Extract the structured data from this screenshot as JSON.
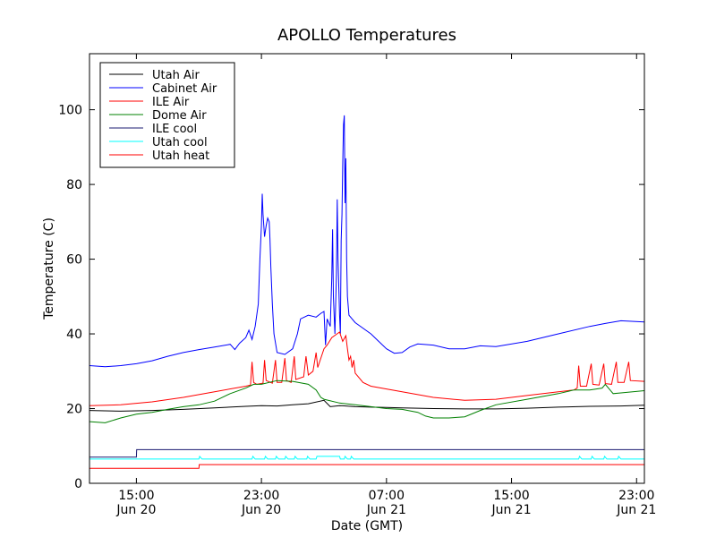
{
  "chart_data": {
    "type": "line",
    "title": "APOLLO Temperatures",
    "xlabel": "Date (GMT)",
    "ylabel": "Temperature (C)",
    "xlim": [
      12.0,
      47.5
    ],
    "ylim": [
      0,
      115
    ],
    "yticks": [
      0,
      20,
      40,
      60,
      80,
      100
    ],
    "xticks": [
      {
        "x": 15,
        "time": "15:00",
        "date": "Jun 20"
      },
      {
        "x": 23,
        "time": "23:00",
        "date": "Jun 20"
      },
      {
        "x": 31,
        "time": "07:00",
        "date": "Jun 21"
      },
      {
        "x": 39,
        "time": "15:00",
        "date": "Jun 21"
      },
      {
        "x": 47,
        "time": "23:00",
        "date": "Jun 21"
      }
    ],
    "legend_position": "top-left",
    "series": [
      {
        "name": "Utah Air",
        "color": "#000000",
        "points": [
          [
            12,
            19.5
          ],
          [
            14,
            19.3
          ],
          [
            16,
            19.5
          ],
          [
            18,
            19.8
          ],
          [
            20,
            20.2
          ],
          [
            22,
            20.6
          ],
          [
            23,
            20.8
          ],
          [
            24,
            20.7
          ],
          [
            25,
            21.0
          ],
          [
            26,
            21.3
          ],
          [
            27,
            22.2
          ],
          [
            27.4,
            20.5
          ],
          [
            28,
            20.8
          ],
          [
            29,
            20.5
          ],
          [
            30,
            20.4
          ],
          [
            31,
            20.3
          ],
          [
            32,
            20.2
          ],
          [
            34,
            20.0
          ],
          [
            36,
            19.9
          ],
          [
            38,
            19.9
          ],
          [
            40,
            20.1
          ],
          [
            42,
            20.4
          ],
          [
            44,
            20.6
          ],
          [
            46,
            20.7
          ],
          [
            47.5,
            20.9
          ]
        ]
      },
      {
        "name": "Cabinet Air",
        "color": "#0000ff",
        "points": [
          [
            12,
            31.5
          ],
          [
            13,
            31.2
          ],
          [
            14,
            31.5
          ],
          [
            15,
            32.0
          ],
          [
            16,
            32.8
          ],
          [
            17,
            34.0
          ],
          [
            18,
            35.0
          ],
          [
            19,
            35.8
          ],
          [
            20,
            36.5
          ],
          [
            21,
            37.2
          ],
          [
            21.3,
            35.8
          ],
          [
            21.6,
            37.5
          ],
          [
            22,
            39.0
          ],
          [
            22.2,
            41.0
          ],
          [
            22.4,
            38.5
          ],
          [
            22.6,
            42.0
          ],
          [
            22.8,
            48.0
          ],
          [
            22.9,
            60.0
          ],
          [
            23.0,
            69.0
          ],
          [
            23.05,
            77.5
          ],
          [
            23.1,
            72.0
          ],
          [
            23.2,
            66.0
          ],
          [
            23.3,
            69.0
          ],
          [
            23.4,
            71.0
          ],
          [
            23.5,
            70.0
          ],
          [
            23.55,
            65.0
          ],
          [
            23.6,
            58.0
          ],
          [
            23.7,
            48.0
          ],
          [
            23.8,
            40.0
          ],
          [
            24.0,
            35.0
          ],
          [
            24.5,
            34.5
          ],
          [
            25.0,
            36.0
          ],
          [
            25.3,
            40.0
          ],
          [
            25.5,
            44.0
          ],
          [
            26.0,
            45.0
          ],
          [
            26.5,
            44.5
          ],
          [
            26.8,
            45.5
          ],
          [
            27.0,
            46.0
          ],
          [
            27.1,
            37.0
          ],
          [
            27.2,
            44.0
          ],
          [
            27.4,
            42.0
          ],
          [
            27.5,
            55.0
          ],
          [
            27.55,
            68.0
          ],
          [
            27.6,
            50.0
          ],
          [
            27.7,
            40.0
          ],
          [
            27.8,
            56.0
          ],
          [
            27.85,
            76.0
          ],
          [
            27.9,
            60.0
          ],
          [
            28.0,
            45.0
          ],
          [
            28.05,
            40.0
          ],
          [
            28.1,
            65.0
          ],
          [
            28.15,
            72.0
          ],
          [
            28.2,
            85.0
          ],
          [
            28.25,
            96.0
          ],
          [
            28.3,
            98.5
          ],
          [
            28.35,
            75.0
          ],
          [
            28.4,
            87.0
          ],
          [
            28.45,
            60.0
          ],
          [
            28.5,
            50.0
          ],
          [
            28.6,
            45.0
          ],
          [
            29.0,
            43.0
          ],
          [
            30.0,
            40.0
          ],
          [
            30.5,
            38.0
          ],
          [
            31.0,
            36.0
          ],
          [
            31.5,
            34.8
          ],
          [
            32.0,
            35.0
          ],
          [
            32.5,
            36.5
          ],
          [
            33.0,
            37.3
          ],
          [
            34.0,
            37.0
          ],
          [
            35.0,
            36.0
          ],
          [
            36.0,
            36.0
          ],
          [
            37.0,
            36.8
          ],
          [
            38.0,
            36.6
          ],
          [
            40.0,
            38.0
          ],
          [
            42.0,
            40.0
          ],
          [
            44.0,
            42.0
          ],
          [
            45.0,
            42.8
          ],
          [
            46.0,
            43.5
          ],
          [
            47.5,
            43.2
          ]
        ]
      },
      {
        "name": "ILE Air",
        "color": "#ff0000",
        "points": [
          [
            12,
            20.8
          ],
          [
            14,
            21.0
          ],
          [
            16,
            21.8
          ],
          [
            18,
            23.0
          ],
          [
            20,
            24.5
          ],
          [
            22,
            26.0
          ],
          [
            22.3,
            26.3
          ],
          [
            22.4,
            32.5
          ],
          [
            22.5,
            27.0
          ],
          [
            22.7,
            26.5
          ],
          [
            23.1,
            26.8
          ],
          [
            23.2,
            33.0
          ],
          [
            23.3,
            27.5
          ],
          [
            23.7,
            26.8
          ],
          [
            23.9,
            33.0
          ],
          [
            24.0,
            27.0
          ],
          [
            24.3,
            27.0
          ],
          [
            24.5,
            33.5
          ],
          [
            24.6,
            27.5
          ],
          [
            24.9,
            27.0
          ],
          [
            25.1,
            34.0
          ],
          [
            25.2,
            27.8
          ],
          [
            25.7,
            28.5
          ],
          [
            25.85,
            34.0
          ],
          [
            26.0,
            29.0
          ],
          [
            26.3,
            30.0
          ],
          [
            26.5,
            35.0
          ],
          [
            26.6,
            31.0
          ],
          [
            27.0,
            36.0
          ],
          [
            27.2,
            37.0
          ],
          [
            27.5,
            39.0
          ],
          [
            28.0,
            40.5
          ],
          [
            28.2,
            38.0
          ],
          [
            28.4,
            39.5
          ],
          [
            28.5,
            36.0
          ],
          [
            28.6,
            33.0
          ],
          [
            28.7,
            34.0
          ],
          [
            28.8,
            31.0
          ],
          [
            28.9,
            33.0
          ],
          [
            29.0,
            29.5
          ],
          [
            29.5,
            27.0
          ],
          [
            30.0,
            26.0
          ],
          [
            32.0,
            24.5
          ],
          [
            34.0,
            23.0
          ],
          [
            36.0,
            22.2
          ],
          [
            38.0,
            22.5
          ],
          [
            40.0,
            23.5
          ],
          [
            42.0,
            24.5
          ],
          [
            43.0,
            25.0
          ],
          [
            43.2,
            25.5
          ],
          [
            43.3,
            31.5
          ],
          [
            43.4,
            26.0
          ],
          [
            43.8,
            26.0
          ],
          [
            44.1,
            32.0
          ],
          [
            44.2,
            26.5
          ],
          [
            44.6,
            26.3
          ],
          [
            44.9,
            32.0
          ],
          [
            45.0,
            26.7
          ],
          [
            45.4,
            26.5
          ],
          [
            45.7,
            32.5
          ],
          [
            45.8,
            27.0
          ],
          [
            46.2,
            27.0
          ],
          [
            46.5,
            32.5
          ],
          [
            46.6,
            27.5
          ],
          [
            47.5,
            27.3
          ]
        ]
      },
      {
        "name": "Dome Air",
        "color": "#008000",
        "points": [
          [
            12,
            16.5
          ],
          [
            13,
            16.2
          ],
          [
            14,
            17.5
          ],
          [
            15,
            18.5
          ],
          [
            16,
            19.0
          ],
          [
            17,
            19.8
          ],
          [
            18,
            20.5
          ],
          [
            19,
            21.0
          ],
          [
            20,
            22.0
          ],
          [
            21,
            24.0
          ],
          [
            22,
            25.5
          ],
          [
            22.5,
            26.5
          ],
          [
            23,
            26.5
          ],
          [
            24,
            27.5
          ],
          [
            25,
            27.3
          ],
          [
            26,
            26.5
          ],
          [
            26.5,
            25.0
          ],
          [
            26.8,
            23.0
          ],
          [
            27.0,
            22.5
          ],
          [
            28.0,
            21.5
          ],
          [
            29,
            21.0
          ],
          [
            30,
            20.5
          ],
          [
            31,
            20.0
          ],
          [
            32,
            19.8
          ],
          [
            33,
            19.0
          ],
          [
            33.5,
            18.0
          ],
          [
            34,
            17.5
          ],
          [
            35,
            17.5
          ],
          [
            36,
            17.8
          ],
          [
            37,
            19.5
          ],
          [
            38,
            21.0
          ],
          [
            40,
            22.5
          ],
          [
            42,
            24.0
          ],
          [
            43,
            25.0
          ],
          [
            44,
            25.0
          ],
          [
            44.8,
            25.5
          ],
          [
            45.0,
            26.5
          ],
          [
            45.3,
            25.0
          ],
          [
            45.5,
            24.0
          ],
          [
            46,
            24.2
          ],
          [
            47.5,
            24.8
          ]
        ]
      },
      {
        "name": "ILE cool",
        "color": "#191970",
        "points": [
          [
            12,
            7.0
          ],
          [
            15,
            7.0
          ],
          [
            15.02,
            9.0
          ],
          [
            47.5,
            9.0
          ]
        ]
      },
      {
        "name": "Utah cool",
        "color": "#00ffff",
        "points": [
          [
            12,
            6.5
          ],
          [
            16,
            6.5
          ],
          [
            19.0,
            6.5
          ],
          [
            19.05,
            7.2
          ],
          [
            19.2,
            6.5
          ],
          [
            22.4,
            6.5
          ],
          [
            22.45,
            7.2
          ],
          [
            22.6,
            6.5
          ],
          [
            23.2,
            6.5
          ],
          [
            23.25,
            7.2
          ],
          [
            23.4,
            6.5
          ],
          [
            23.9,
            6.5
          ],
          [
            23.95,
            7.2
          ],
          [
            24.1,
            6.5
          ],
          [
            24.5,
            6.5
          ],
          [
            24.55,
            7.2
          ],
          [
            24.7,
            6.5
          ],
          [
            25.1,
            6.5
          ],
          [
            25.15,
            7.2
          ],
          [
            25.3,
            6.5
          ],
          [
            25.9,
            6.5
          ],
          [
            25.95,
            7.2
          ],
          [
            26.1,
            6.5
          ],
          [
            26.5,
            6.5
          ],
          [
            26.55,
            7.2
          ],
          [
            28.0,
            7.2
          ],
          [
            28.05,
            6.5
          ],
          [
            28.3,
            6.5
          ],
          [
            28.35,
            7.2
          ],
          [
            28.5,
            6.5
          ],
          [
            28.7,
            6.5
          ],
          [
            28.75,
            7.2
          ],
          [
            28.9,
            6.5
          ],
          [
            43.3,
            6.5
          ],
          [
            43.35,
            7.2
          ],
          [
            43.5,
            6.5
          ],
          [
            44.1,
            6.5
          ],
          [
            44.15,
            7.2
          ],
          [
            44.3,
            6.5
          ],
          [
            44.9,
            6.5
          ],
          [
            44.95,
            7.2
          ],
          [
            45.1,
            6.5
          ],
          [
            45.8,
            6.5
          ],
          [
            45.85,
            7.2
          ],
          [
            46.0,
            6.5
          ],
          [
            47.5,
            6.5
          ]
        ]
      },
      {
        "name": "Utah heat",
        "color": "#ff0000",
        "points": [
          [
            12,
            4.0
          ],
          [
            19,
            4.0
          ],
          [
            19.02,
            5.0
          ],
          [
            47.5,
            5.0
          ]
        ]
      }
    ]
  }
}
